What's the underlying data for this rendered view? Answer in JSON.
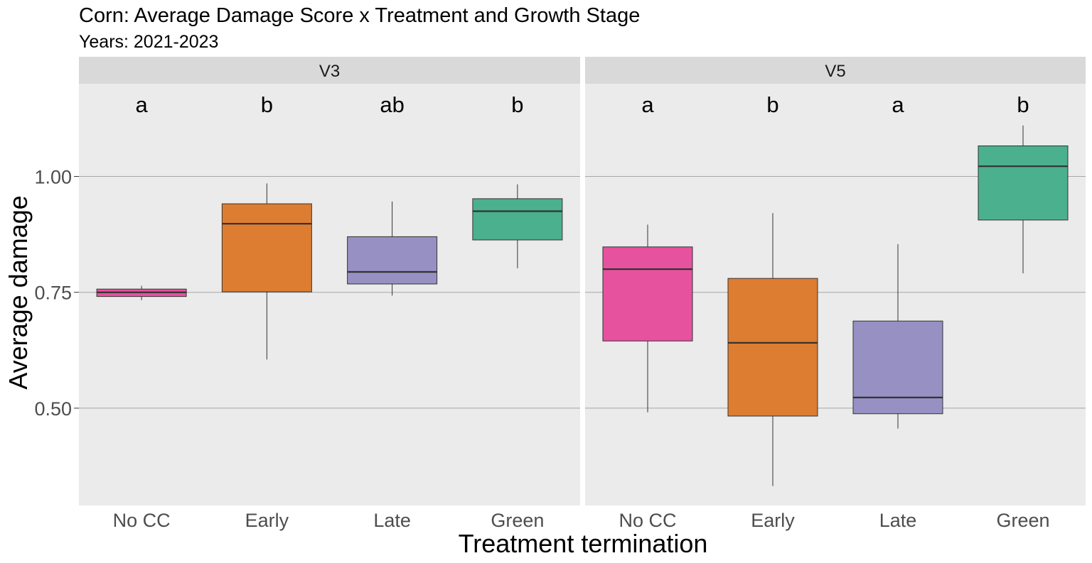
{
  "chart_data": {
    "type": "box",
    "title": "Corn: Average Damage Score x Treatment and Growth Stage",
    "subtitle": "Years: 2021-2023",
    "xlabel": "Treatment termination",
    "ylabel": "Average damage",
    "ylim": [
      0.29,
      1.2
    ],
    "yticks": [
      0.5,
      0.75,
      1.0
    ],
    "ytick_labels": [
      "0.50",
      "0.75",
      "1.00"
    ],
    "categories": [
      "No CC",
      "Early",
      "Late",
      "Green"
    ],
    "colors": {
      "No CC": "#e7529f",
      "Early": "#dd7d31",
      "Late": "#9690c3",
      "Green": "#4bb08d"
    },
    "panel_background": "#ebebeb",
    "strip_background": "#d9d9d9",
    "grid": true,
    "legend": "none",
    "panels": [
      {
        "name": "V3",
        "boxes": [
          {
            "category": "No CC",
            "min": 0.733,
            "q1": 0.741,
            "median": 0.75,
            "q3": 0.757,
            "max": 0.764,
            "letter": "a"
          },
          {
            "category": "Early",
            "min": 0.605,
            "q1": 0.751,
            "median": 0.898,
            "q3": 0.941,
            "max": 0.985,
            "letter": "b"
          },
          {
            "category": "Late",
            "min": 0.743,
            "q1": 0.768,
            "median": 0.794,
            "q3": 0.87,
            "max": 0.946,
            "letter": "ab"
          },
          {
            "category": "Green",
            "min": 0.802,
            "q1": 0.863,
            "median": 0.925,
            "q3": 0.952,
            "max": 0.983,
            "letter": "b"
          }
        ]
      },
      {
        "name": "V5",
        "boxes": [
          {
            "category": "No CC",
            "min": 0.491,
            "q1": 0.645,
            "median": 0.8,
            "q3": 0.848,
            "max": 0.896,
            "letter": "a"
          },
          {
            "category": "Early",
            "min": 0.332,
            "q1": 0.483,
            "median": 0.641,
            "q3": 0.78,
            "max": 0.921,
            "letter": "b"
          },
          {
            "category": "Late",
            "min": 0.456,
            "q1": 0.488,
            "median": 0.523,
            "q3": 0.688,
            "max": 0.854,
            "letter": "a"
          },
          {
            "category": "Green",
            "min": 0.791,
            "q1": 0.906,
            "median": 1.022,
            "q3": 1.066,
            "max": 1.11,
            "letter": "b"
          }
        ]
      }
    ]
  }
}
